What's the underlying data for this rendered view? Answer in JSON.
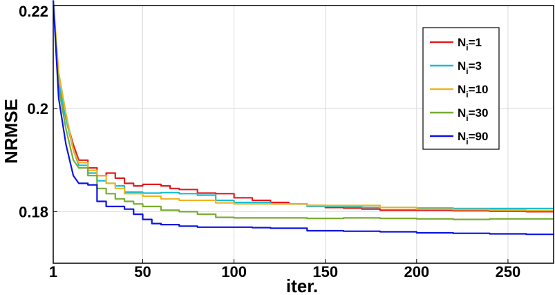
{
  "chart_data": {
    "type": "line",
    "xlabel": "iter.",
    "ylabel": "NRMSE",
    "xlim": [
      1,
      275
    ],
    "ylim": [
      0.17,
      0.22
    ],
    "xticks": [
      1,
      50,
      100,
      150,
      200,
      250
    ],
    "xtick_labels": [
      "1",
      "50",
      "100",
      "150",
      "200",
      "250"
    ],
    "yticks": [
      0.18,
      0.2,
      0.22
    ],
    "ytick_labels": [
      "0.18",
      "0.2",
      "0.22"
    ],
    "grid": true,
    "legend_position": "top-right",
    "series": [
      {
        "name_main": "N",
        "name_sub": "i",
        "name_rest": "=1",
        "color": "#e41a1c",
        "points": [
          [
            1,
            0.221
          ],
          [
            4,
            0.205
          ],
          [
            8,
            0.198
          ],
          [
            12,
            0.193
          ],
          [
            15,
            0.19
          ],
          [
            20,
            0.1885
          ],
          [
            25,
            0.187
          ],
          [
            30,
            0.1875
          ],
          [
            35,
            0.1865
          ],
          [
            40,
            0.1855
          ],
          [
            45,
            0.185
          ],
          [
            50,
            0.1853
          ],
          [
            60,
            0.185
          ],
          [
            65,
            0.1845
          ],
          [
            70,
            0.1843
          ],
          [
            80,
            0.1836
          ],
          [
            90,
            0.1835
          ],
          [
            100,
            0.1827
          ],
          [
            110,
            0.1822
          ],
          [
            120,
            0.1818
          ],
          [
            130,
            0.1815
          ],
          [
            140,
            0.1812
          ],
          [
            150,
            0.1808
          ],
          [
            160,
            0.1807
          ],
          [
            170,
            0.1805
          ],
          [
            180,
            0.1803
          ],
          [
            200,
            0.1803
          ],
          [
            220,
            0.1802
          ],
          [
            240,
            0.1801
          ],
          [
            260,
            0.18
          ],
          [
            275,
            0.18
          ]
        ]
      },
      {
        "name_main": "N",
        "name_sub": "i",
        "name_rest": "=3",
        "color": "#17becf",
        "points": [
          [
            1,
            0.221
          ],
          [
            4,
            0.205
          ],
          [
            8,
            0.198
          ],
          [
            12,
            0.192
          ],
          [
            15,
            0.189
          ],
          [
            20,
            0.1875
          ],
          [
            25,
            0.186
          ],
          [
            30,
            0.1855
          ],
          [
            35,
            0.185
          ],
          [
            40,
            0.1838
          ],
          [
            50,
            0.1836
          ],
          [
            60,
            0.1837
          ],
          [
            70,
            0.1835
          ],
          [
            80,
            0.1832
          ],
          [
            90,
            0.1822
          ],
          [
            100,
            0.1818
          ],
          [
            110,
            0.1818
          ],
          [
            120,
            0.1815
          ],
          [
            130,
            0.1815
          ],
          [
            140,
            0.181
          ],
          [
            150,
            0.181
          ],
          [
            170,
            0.1808
          ],
          [
            200,
            0.1807
          ],
          [
            220,
            0.1806
          ],
          [
            240,
            0.1806
          ],
          [
            275,
            0.1805
          ]
        ]
      },
      {
        "name_main": "N",
        "name_sub": "i",
        "name_rest": "=10",
        "color": "#f0b323",
        "points": [
          [
            1,
            0.221
          ],
          [
            4,
            0.207
          ],
          [
            8,
            0.199
          ],
          [
            12,
            0.192
          ],
          [
            15,
            0.1895
          ],
          [
            20,
            0.188
          ],
          [
            25,
            0.187
          ],
          [
            30,
            0.1855
          ],
          [
            35,
            0.1845
          ],
          [
            40,
            0.1835
          ],
          [
            50,
            0.183
          ],
          [
            60,
            0.1825
          ],
          [
            70,
            0.1822
          ],
          [
            80,
            0.1822
          ],
          [
            90,
            0.1817
          ],
          [
            100,
            0.1815
          ],
          [
            110,
            0.1815
          ],
          [
            130,
            0.1815
          ],
          [
            140,
            0.1812
          ],
          [
            160,
            0.1812
          ],
          [
            180,
            0.1808
          ],
          [
            200,
            0.1805
          ],
          [
            220,
            0.1804
          ],
          [
            240,
            0.1803
          ],
          [
            260,
            0.1802
          ],
          [
            275,
            0.1802
          ]
        ]
      },
      {
        "name_main": "N",
        "name_sub": "i",
        "name_rest": "=30",
        "color": "#77ac30",
        "points": [
          [
            1,
            0.221
          ],
          [
            4,
            0.204
          ],
          [
            8,
            0.196
          ],
          [
            12,
            0.19
          ],
          [
            15,
            0.1885
          ],
          [
            20,
            0.187
          ],
          [
            25,
            0.1845
          ],
          [
            30,
            0.1835
          ],
          [
            35,
            0.1825
          ],
          [
            40,
            0.182
          ],
          [
            45,
            0.1815
          ],
          [
            50,
            0.181
          ],
          [
            60,
            0.1803
          ],
          [
            70,
            0.18
          ],
          [
            80,
            0.1795
          ],
          [
            90,
            0.1789
          ],
          [
            100,
            0.1788
          ],
          [
            120,
            0.1788
          ],
          [
            140,
            0.1787
          ],
          [
            160,
            0.1788
          ],
          [
            180,
            0.1787
          ],
          [
            200,
            0.1786
          ],
          [
            220,
            0.1785
          ],
          [
            240,
            0.1786
          ],
          [
            260,
            0.1786
          ],
          [
            275,
            0.1786
          ]
        ]
      },
      {
        "name_main": "N",
        "name_sub": "i",
        "name_rest": "=90",
        "color": "#0a14e0",
        "points": [
          [
            1,
            0.221
          ],
          [
            4,
            0.202
          ],
          [
            8,
            0.193
          ],
          [
            12,
            0.187
          ],
          [
            15,
            0.1855
          ],
          [
            20,
            0.1852
          ],
          [
            25,
            0.182
          ],
          [
            30,
            0.181
          ],
          [
            40,
            0.1805
          ],
          [
            45,
            0.1795
          ],
          [
            50,
            0.1785
          ],
          [
            55,
            0.1777
          ],
          [
            60,
            0.1775
          ],
          [
            70,
            0.1772
          ],
          [
            80,
            0.177
          ],
          [
            90,
            0.177
          ],
          [
            100,
            0.177
          ],
          [
            110,
            0.1769
          ],
          [
            120,
            0.1768
          ],
          [
            140,
            0.1763
          ],
          [
            160,
            0.1762
          ],
          [
            180,
            0.1761
          ],
          [
            200,
            0.1759
          ],
          [
            220,
            0.1758
          ],
          [
            240,
            0.1757
          ],
          [
            260,
            0.1756
          ],
          [
            275,
            0.1755
          ]
        ]
      }
    ]
  }
}
